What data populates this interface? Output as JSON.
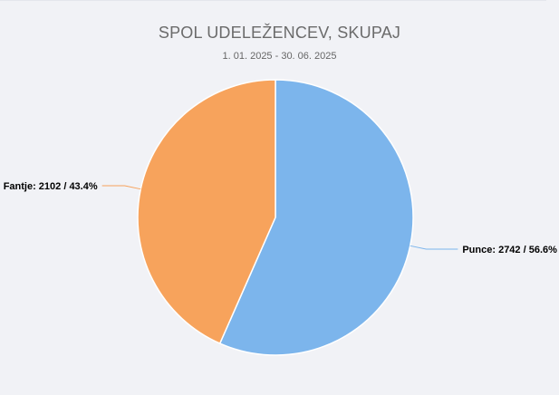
{
  "chart_data": {
    "type": "pie",
    "title": "SPOL UDELEŽENCEV, SKUPAJ",
    "subtitle": "1. 01. 2025 - 30. 06. 2025",
    "start_angle_deg": 0,
    "direction": "clockwise",
    "slices": [
      {
        "label": "Punce",
        "value": 2742,
        "percent": 56.6,
        "display": "Punce: 2742 / 56.6%",
        "color": "#7cb5ec",
        "label_side": "right"
      },
      {
        "label": "Fantje",
        "value": 2102,
        "percent": 43.4,
        "display": "Fantje: 2102 / 43.4%",
        "color": "#f7a35c",
        "label_side": "left"
      }
    ],
    "legend": "none"
  }
}
